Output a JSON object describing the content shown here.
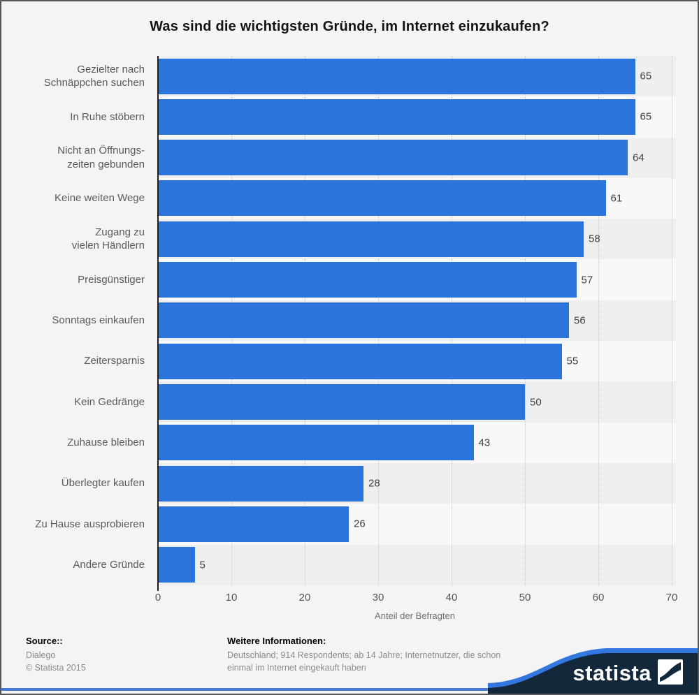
{
  "title": "Was sind die wichtigsten Gründe, im Internet einzukaufen?",
  "chart_data": {
    "type": "bar",
    "orientation": "horizontal",
    "categories": [
      "Gezielter nach\nSchnäppchen suchen",
      "In Ruhe stöbern",
      "Nicht an Öffnungs-\nzeiten gebunden",
      "Keine weiten Wege",
      "Zugang zu\nvielen Händlern",
      "Preisgünstiger",
      "Sonntags einkaufen",
      "Zeitersparnis",
      "Kein Gedränge",
      "Zuhause bleiben",
      "Überlegter kaufen",
      "Zu Hause ausprobieren",
      "Andere Gründe"
    ],
    "values": [
      65,
      65,
      64,
      61,
      58,
      57,
      56,
      55,
      50,
      43,
      28,
      26,
      5
    ],
    "xlabel": "Anteil der Befragten",
    "xlim": [
      0,
      70
    ],
    "xticks": [
      0,
      10,
      20,
      30,
      40,
      50,
      60,
      70
    ],
    "grid": "dotted-vertical",
    "legend": "none",
    "bar_color": "#2b74dc",
    "row_band_colors": [
      "#efeff0",
      "#f8f8f9"
    ]
  },
  "footer": {
    "source_label": "Source::",
    "source_lines": [
      "Dialego",
      "© Statista 2015"
    ],
    "info_label": "Weitere Informationen:",
    "info_lines": [
      "Deutschland; 914 Respondents; ab 14 Jahre; Internetnutzer, die schon",
      "einmal im Internet eingekauft haben"
    ]
  },
  "logo": {
    "brand": "statista",
    "navy": "#14283c",
    "blue": "#3377e0"
  }
}
